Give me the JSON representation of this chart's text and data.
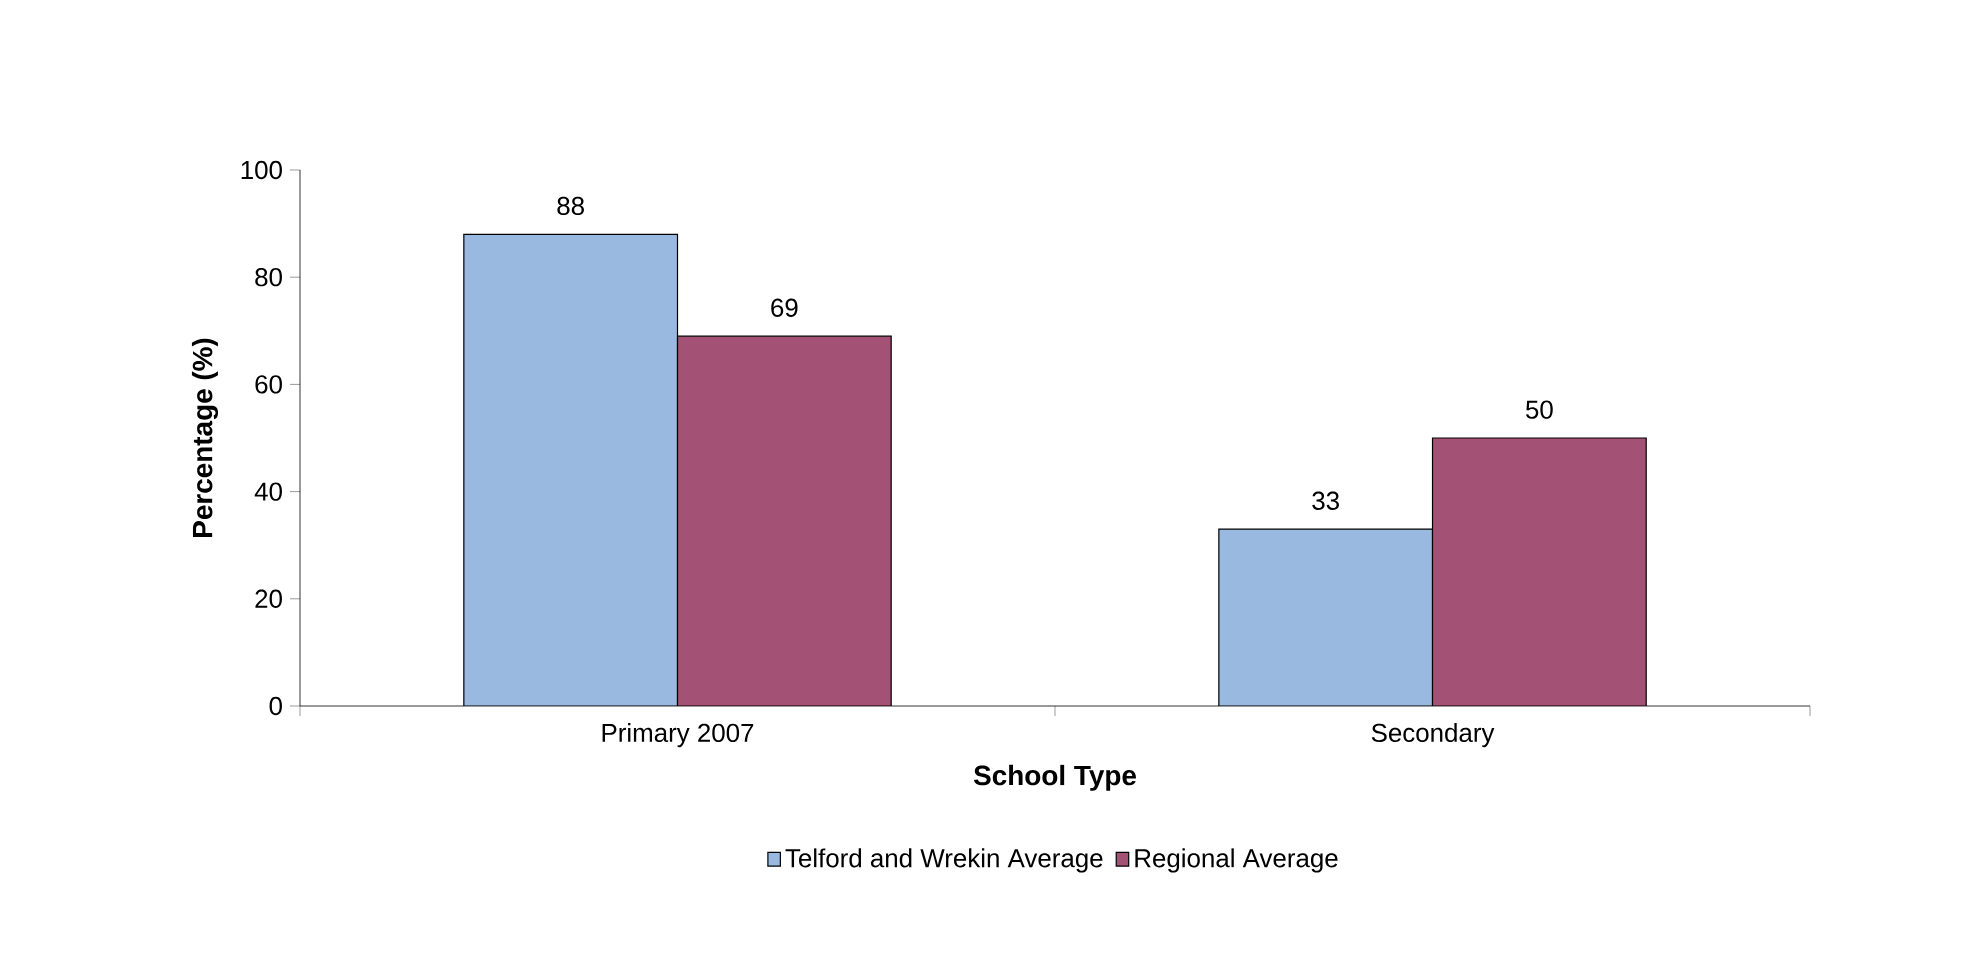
{
  "chart_data": {
    "type": "bar",
    "xlabel": "School Type",
    "ylabel": "Percentage (%)",
    "categories": [
      "Primary 2007",
      "Secondary"
    ],
    "series": [
      {
        "name": "Telford and Wrekin Average",
        "color": "#99b9e1",
        "values": [
          88,
          33
        ]
      },
      {
        "name": "Regional Average",
        "color": "#a35275",
        "values": [
          69,
          50
        ]
      }
    ],
    "ylim": [
      0,
      100
    ],
    "yticks": [
      0,
      20,
      40,
      60,
      80,
      100
    ],
    "data_labels": true,
    "grid": false,
    "legend": "bottom"
  }
}
